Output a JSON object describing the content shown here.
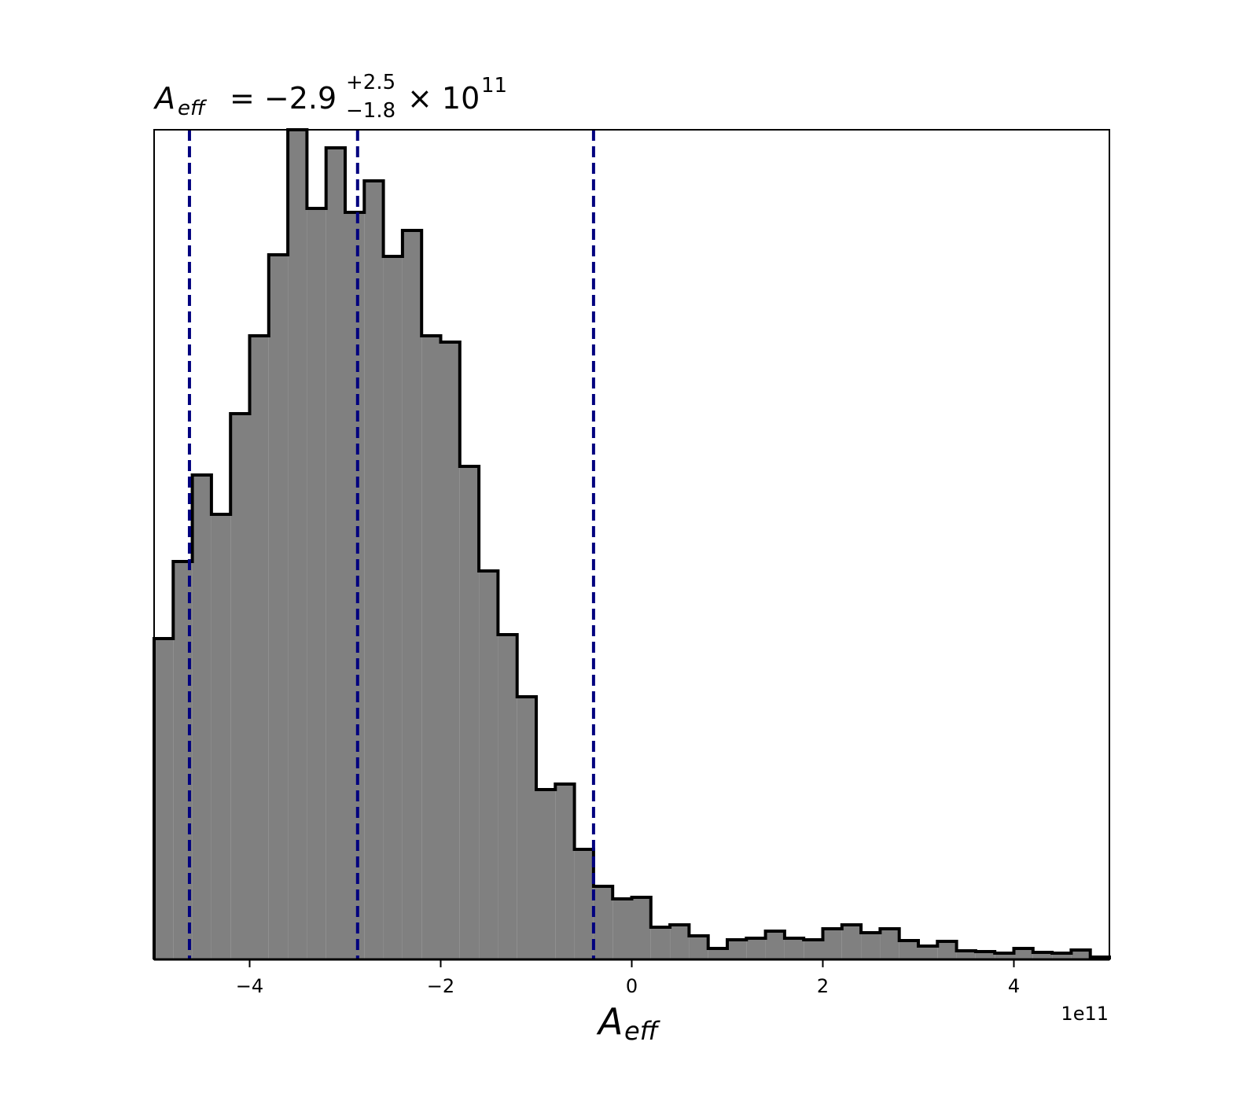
{
  "chart_data": {
    "type": "histogram",
    "title": {
      "symbol": "A",
      "subscript": "eff",
      "equals": "= −2.9",
      "upper": "+2.5",
      "lower": "−1.8",
      "times": "× 10",
      "exponent": "11"
    },
    "x_label": {
      "symbol": "A",
      "subscript": "eff"
    },
    "x_offset_label": "1e11",
    "bins": [
      -5,
      -4.8,
      -4.6,
      -4.4,
      -4.2,
      -4,
      -3.8,
      -3.6,
      -3.4,
      -3.2,
      -3,
      -2.8,
      -2.6,
      -2.4,
      -2.2,
      -2,
      -1.8,
      -1.6,
      -1.4,
      -1.2,
      -1,
      -0.8,
      -0.6,
      -0.4,
      -0.2,
      0,
      0.2,
      0.4,
      0.6,
      0.8,
      1,
      1.2,
      1.4,
      1.6,
      1.8,
      2,
      2.2,
      2.4,
      2.6,
      2.8,
      3,
      3.2,
      3.4,
      3.6,
      3.8,
      4,
      4.2,
      4.4,
      4.6,
      4.8,
      5
    ],
    "counts": [
      408,
      506,
      616,
      566,
      694,
      793,
      896,
      1055,
      955,
      1032,
      950,
      990,
      894,
      927,
      793,
      785,
      627,
      494,
      413,
      334,
      216,
      223,
      140,
      93,
      77,
      79,
      41,
      44,
      30,
      14,
      25,
      27,
      36,
      27,
      25,
      39,
      44,
      34,
      39,
      24,
      17,
      23,
      11,
      10,
      8,
      14,
      9,
      8,
      12,
      3
    ],
    "color": "#808080",
    "edge_color": "#000000",
    "quantile_lines": [
      -4.63,
      -2.87,
      -0.4
    ],
    "quantile_color": "#00007f",
    "xlim": [
      -5,
      5
    ],
    "ylim": [
      0,
      1055
    ],
    "xticks": [
      {
        "value": -4,
        "label": "−4"
      },
      {
        "value": -2,
        "label": "−2"
      },
      0,
      2,
      4
    ]
  }
}
